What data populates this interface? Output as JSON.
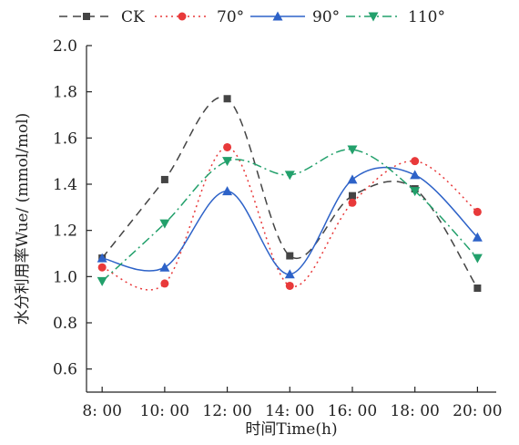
{
  "chart_data": {
    "type": "line",
    "xlabel": "时间Time(h)",
    "ylabel": "水分利用率Wue/ (mmol/mol)",
    "categories": [
      "8: 00",
      "10: 00",
      "12: 00",
      "14: 00",
      "16: 00",
      "18: 00",
      "20: 00"
    ],
    "x_hours": [
      8,
      10,
      12,
      14,
      16,
      18,
      20
    ],
    "ylim": [
      0.5,
      2.0
    ],
    "yticks": [
      "0.6",
      "0.8",
      "1.0",
      "1.2",
      "1.4",
      "1.6",
      "1.8",
      "2.0"
    ],
    "ytick_values": [
      0.6,
      0.8,
      1.0,
      1.2,
      1.4,
      1.6,
      1.8,
      2.0
    ],
    "grid": false,
    "legend": "top",
    "series": [
      {
        "name": "CK",
        "color": "#444444",
        "marker": "square",
        "dash": "long-dash",
        "values": [
          1.08,
          1.42,
          1.77,
          1.09,
          1.35,
          1.38,
          0.95
        ]
      },
      {
        "name": "70°",
        "color": "#e8393a",
        "marker": "circle",
        "dash": "dotted",
        "values": [
          1.04,
          0.97,
          1.56,
          0.96,
          1.32,
          1.5,
          1.28
        ]
      },
      {
        "name": "90°",
        "color": "#2d62c8",
        "marker": "triangle-up",
        "dash": "solid",
        "values": [
          1.08,
          1.04,
          1.37,
          1.01,
          1.42,
          1.44,
          1.17
        ]
      },
      {
        "name": "110°",
        "color": "#22a06b",
        "marker": "triangle-down",
        "dash": "dash-dot",
        "values": [
          0.98,
          1.23,
          1.5,
          1.44,
          1.55,
          1.37,
          1.08
        ]
      }
    ]
  }
}
